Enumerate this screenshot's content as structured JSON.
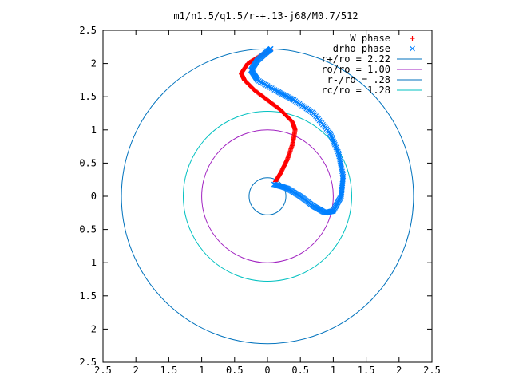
{
  "chart_data": {
    "type": "scatter",
    "title": "m1/n1.5/q1.5/r-+.13-j68/M0.7/512",
    "xlim": [
      -2.5,
      2.5
    ],
    "ylim": [
      -2.5,
      2.5
    ],
    "x_ticks": [
      -2.5,
      -2,
      -1.5,
      -1,
      -0.5,
      0,
      0.5,
      1,
      1.5,
      2,
      2.5
    ],
    "y_ticks": [
      -2.5,
      -2,
      -1.5,
      -1,
      -0.5,
      0,
      0.5,
      1,
      1.5,
      2,
      2.5
    ],
    "x_tick_labels": [
      "2.5",
      "2",
      "1.5",
      "1",
      "0.5",
      "0",
      "0.5",
      "1",
      "1.5",
      "2",
      "2.5"
    ],
    "y_tick_labels": [
      "2.5",
      "2",
      "1.5",
      "1",
      "0.5",
      "0",
      "0.5",
      "1",
      "1.5",
      "2",
      "2.5"
    ],
    "legend_position": "top-right",
    "grid": false,
    "series": [
      {
        "name": "W phase",
        "kind": "points",
        "marker": "+",
        "color": "#ff0000",
        "points": [
          [
            0.12,
            0.22
          ],
          [
            0.2,
            0.35
          ],
          [
            0.3,
            0.55
          ],
          [
            0.38,
            0.78
          ],
          [
            0.42,
            1.0
          ],
          [
            0.38,
            1.12
          ],
          [
            0.2,
            1.3
          ],
          [
            0.0,
            1.45
          ],
          [
            -0.2,
            1.6
          ],
          [
            -0.35,
            1.75
          ],
          [
            -0.4,
            1.85
          ],
          [
            -0.3,
            2.0
          ],
          [
            -0.1,
            2.12
          ],
          [
            0.05,
            2.2
          ]
        ]
      },
      {
        "name": "drho phase",
        "kind": "points",
        "marker": "x",
        "color": "#0080ff",
        "points": [
          [
            0.1,
            0.18
          ],
          [
            0.3,
            0.12
          ],
          [
            0.5,
            0.0
          ],
          [
            0.7,
            -0.15
          ],
          [
            0.88,
            -0.25
          ],
          [
            1.0,
            -0.22
          ],
          [
            1.12,
            0.0
          ],
          [
            1.15,
            0.3
          ],
          [
            1.08,
            0.65
          ],
          [
            0.95,
            0.95
          ],
          [
            0.7,
            1.25
          ],
          [
            0.4,
            1.45
          ],
          [
            0.15,
            1.58
          ],
          [
            -0.15,
            1.75
          ],
          [
            -0.25,
            1.9
          ],
          [
            -0.15,
            2.05
          ],
          [
            0.0,
            2.18
          ],
          [
            0.05,
            2.22
          ]
        ]
      },
      {
        "name": "r+/ro = 2.22",
        "kind": "circle",
        "radius": 2.22,
        "color": "#0072bd"
      },
      {
        "name": "ro/ro = 1.00",
        "kind": "circle",
        "radius": 1.0,
        "color": "#a020c0"
      },
      {
        "name": "r-/ro = .28",
        "kind": "circle",
        "radius": 0.28,
        "color": "#0072bd"
      },
      {
        "name": "rc/ro = 1.28",
        "kind": "circle",
        "radius": 1.28,
        "color": "#00c0c0"
      }
    ]
  }
}
